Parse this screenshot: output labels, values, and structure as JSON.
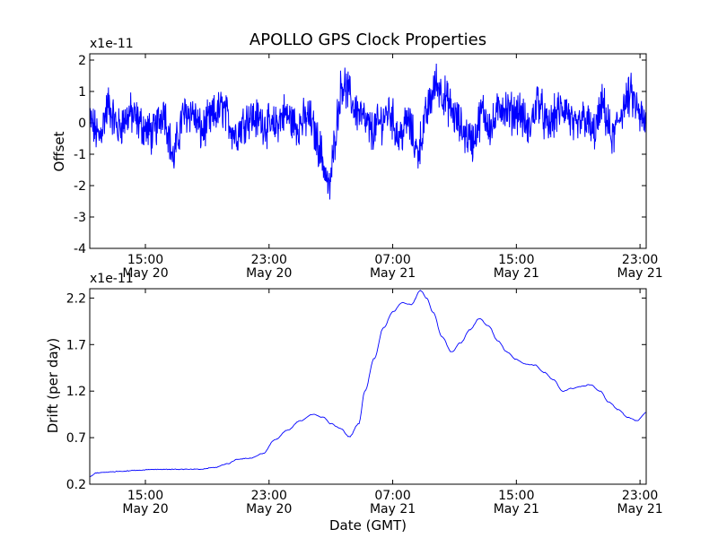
{
  "chart_data": [
    {
      "type": "line",
      "title": "APOLLO GPS Clock Properties",
      "xlabel": "",
      "ylabel": "Offset",
      "y_multiplier_label": "x1e-11",
      "ylim": [
        -4,
        2.2
      ],
      "y_ticks": [
        "2",
        "1",
        "0",
        "-1",
        "-2",
        "-3",
        "-4"
      ],
      "x_ticks": [
        {
          "time": "15:00",
          "date": "May 20"
        },
        {
          "time": "23:00",
          "date": "May 20"
        },
        {
          "time": "07:00",
          "date": "May 21"
        },
        {
          "time": "15:00",
          "date": "May 21"
        },
        {
          "time": "23:00",
          "date": "May 21"
        }
      ],
      "x_range_hours": [
        11.4,
        47.4
      ],
      "line_color": "#0000ff",
      "series": [
        {
          "x_hours": [
            11.4,
            12.0,
            12.6,
            13.2,
            14.0,
            14.8,
            15.5,
            16.2,
            16.8,
            17.4,
            18.0,
            18.6,
            19.2,
            20.0,
            20.8,
            21.6,
            22.4,
            23.2,
            24.0,
            24.8,
            25.6,
            26.4,
            26.9,
            27.3,
            27.7,
            28.1,
            28.5,
            29.0,
            29.6,
            30.2,
            30.8,
            31.4,
            32.0,
            32.6,
            33.2,
            33.8,
            34.4,
            35.0,
            35.6,
            36.2,
            36.8,
            37.4,
            38.0,
            38.6,
            39.2,
            39.8,
            40.4,
            41.0,
            41.6,
            42.2,
            42.8,
            43.4,
            44.0,
            44.6,
            45.2,
            45.8,
            46.4,
            47.0,
            47.4
          ],
          "y": [
            0.1,
            -0.5,
            0.6,
            -0.2,
            0.3,
            -0.1,
            -0.4,
            0.5,
            -1.2,
            0.2,
            0.4,
            -0.3,
            0.1,
            0.5,
            -0.4,
            0.2,
            0.1,
            -0.2,
            0.3,
            -0.1,
            0.2,
            -1.0,
            -2.2,
            -0.3,
            1.3,
            1.0,
            0.5,
            0.2,
            -0.3,
            0.0,
            0.4,
            -0.5,
            0.1,
            -1.0,
            0.3,
            1.3,
            0.8,
            0.2,
            -0.3,
            -0.6,
            0.4,
            -0.2,
            0.6,
            0.3,
            0.4,
            -0.3,
            0.8,
            -0.2,
            0.3,
            0.5,
            -0.3,
            0.2,
            -0.4,
            0.6,
            -0.6,
            0.4,
            0.9,
            0.2,
            -0.1
          ]
        }
      ]
    },
    {
      "type": "line",
      "title": "",
      "xlabel": "Date (GMT)",
      "ylabel": "Drift (per day)",
      "y_multiplier_label": "x1e-11",
      "ylim": [
        0.2,
        2.3
      ],
      "y_ticks": [
        "2.2",
        "1.7",
        "1.2",
        "0.7",
        "0.2"
      ],
      "x_ticks": [
        {
          "time": "15:00",
          "date": "May 20"
        },
        {
          "time": "23:00",
          "date": "May 20"
        },
        {
          "time": "07:00",
          "date": "May 21"
        },
        {
          "time": "15:00",
          "date": "May 21"
        },
        {
          "time": "23:00",
          "date": "May 21"
        }
      ],
      "x_range_hours": [
        11.4,
        47.4
      ],
      "line_color": "#0000ff",
      "series": [
        {
          "x_hours": [
            11.4,
            11.8,
            12.5,
            13.5,
            14.5,
            15.5,
            16.5,
            17.5,
            18.5,
            19.5,
            20.3,
            21.0,
            21.8,
            22.6,
            23.4,
            24.2,
            25.0,
            25.8,
            26.5,
            27.0,
            27.6,
            28.2,
            28.8,
            29.2,
            29.8,
            30.4,
            31.0,
            31.6,
            32.2,
            32.8,
            33.2,
            33.6,
            34.2,
            34.8,
            35.4,
            36.0,
            36.6,
            37.2,
            37.8,
            38.4,
            39.0,
            39.6,
            40.2,
            40.8,
            41.4,
            42.0,
            42.6,
            43.2,
            43.8,
            44.4,
            45.0,
            45.6,
            46.2,
            46.8,
            47.4
          ],
          "y": [
            0.28,
            0.32,
            0.33,
            0.34,
            0.35,
            0.36,
            0.36,
            0.36,
            0.36,
            0.38,
            0.42,
            0.47,
            0.48,
            0.53,
            0.68,
            0.78,
            0.88,
            0.95,
            0.92,
            0.85,
            0.8,
            0.71,
            0.85,
            1.2,
            1.55,
            1.88,
            2.05,
            2.15,
            2.13,
            2.28,
            2.2,
            2.05,
            1.78,
            1.62,
            1.72,
            1.86,
            1.98,
            1.9,
            1.74,
            1.62,
            1.54,
            1.49,
            1.48,
            1.4,
            1.32,
            1.2,
            1.23,
            1.25,
            1.27,
            1.2,
            1.08,
            1.0,
            0.92,
            0.88,
            0.97
          ]
        }
      ]
    }
  ]
}
